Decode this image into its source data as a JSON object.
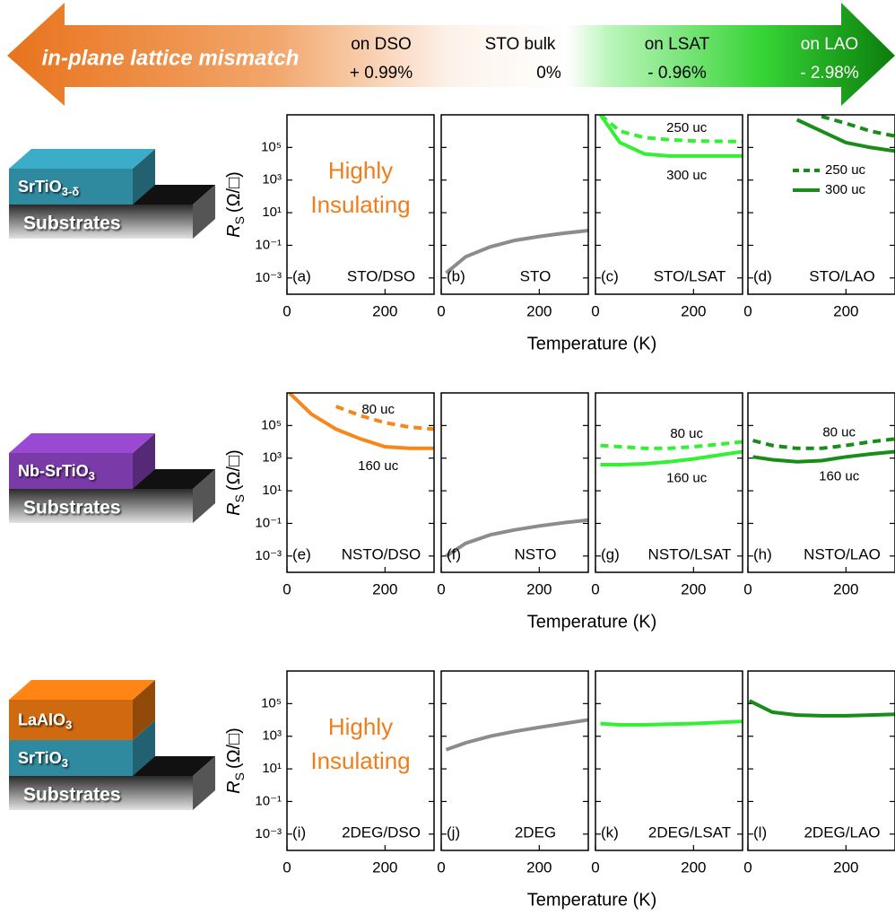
{
  "banner": {
    "title": "in-plane lattice mismatch",
    "substrates": [
      {
        "name": "on DSO",
        "mismatch": "+ 0.99%"
      },
      {
        "name": "STO bulk",
        "mismatch": "0%"
      },
      {
        "name": "on LSAT",
        "mismatch": "- 0.96%"
      },
      {
        "name": "on LAO",
        "mismatch": "- 2.98%"
      }
    ]
  },
  "rows": [
    {
      "film": [
        {
          "text": "SrTiO",
          "sub": "3-δ"
        }
      ],
      "substrate": "Substrates",
      "y_label": {
        "symbol": "R",
        "subscript": "S",
        "unit": "(Ω/□)"
      },
      "x_label": "Temperature (K)"
    },
    {
      "film": [
        {
          "text": "Nb-SrTiO",
          "sub": "3"
        }
      ],
      "substrate": "Substrates",
      "y_label": {
        "symbol": "R",
        "subscript": "S",
        "unit": "(Ω/□)"
      },
      "x_label": "Temperature (K)"
    },
    {
      "film": [
        {
          "text": "LaAlO",
          "sub": "3"
        },
        {
          "text": "SrTiO",
          "sub": "3"
        }
      ],
      "substrate": "Substrates",
      "y_label": {
        "symbol": "R",
        "subscript": "S",
        "unit": "(Ω/□)"
      },
      "x_label": "Temperature (K)"
    }
  ],
  "chart_data": [
    {
      "type": "line",
      "panel_label": "(a)",
      "sample": "STO/DSO",
      "annotation": [
        "Highly",
        "Insulating"
      ],
      "xlim": [
        0,
        300
      ],
      "xticks": [
        0,
        200
      ],
      "ylim": [
        0.0001,
        10000000
      ],
      "log_y": true,
      "yticks": [
        {
          "value": 0.001,
          "label": "10⁻³"
        },
        {
          "value": 0.1,
          "label": "10⁻¹"
        },
        {
          "value": 10,
          "label": "10¹"
        },
        {
          "value": 1000,
          "label": "10³"
        },
        {
          "value": 100000,
          "label": "10⁵"
        }
      ]
    },
    {
      "type": "line",
      "panel_label": "(b)",
      "sample": "STO",
      "xlim": [
        0,
        300
      ],
      "xticks": [
        0,
        200
      ],
      "ylim": [
        0.0001,
        10000000
      ],
      "log_y": true,
      "yticks": [
        0.001,
        0.1,
        10,
        1000,
        100000
      ],
      "x": [
        10,
        50,
        100,
        150,
        200,
        250,
        300
      ],
      "series": [
        {
          "color": "#8c8c8c",
          "values": [
            0.002,
            0.02,
            0.08,
            0.2,
            0.35,
            0.55,
            0.8
          ]
        }
      ]
    },
    {
      "type": "line",
      "panel_label": "(c)",
      "sample": "STO/LSAT",
      "xlim": [
        0,
        300
      ],
      "xticks": [
        0,
        200
      ],
      "ylim": [
        0.0001,
        10000000
      ],
      "log_y": true,
      "yticks": [
        0.001,
        0.1,
        10,
        1000,
        100000
      ],
      "legend": false,
      "x": [
        10,
        50,
        100,
        150,
        200,
        250,
        300
      ],
      "series": [
        {
          "name": "250 uc",
          "color": "#33f033",
          "dashed": true,
          "values": [
            10000000,
            1000000,
            400000,
            300000,
            250000,
            240000,
            230000
          ]
        },
        {
          "name": "300 uc",
          "color": "#33f033",
          "dashed": false,
          "values": [
            10000000,
            200000,
            40000,
            30000,
            30000,
            30000,
            30000
          ]
        }
      ]
    },
    {
      "type": "line",
      "panel_label": "(d)",
      "sample": "STO/LAO",
      "xlim": [
        0,
        300
      ],
      "xticks": [
        0,
        200
      ],
      "ylim": [
        0.0001,
        10000000
      ],
      "log_y": true,
      "yticks": [
        0.001,
        0.1,
        10,
        1000,
        100000
      ],
      "legend": true,
      "x": [
        10,
        50,
        100,
        150,
        200,
        250,
        300
      ],
      "series": [
        {
          "name": "250 uc",
          "color": "#1a8c1a",
          "dashed": true,
          "values": [
            null,
            null,
            null,
            8000000,
            3000000,
            1000000,
            500000
          ]
        },
        {
          "name": "300 uc",
          "color": "#1a8c1a",
          "dashed": false,
          "values": [
            null,
            null,
            5000000,
            1000000,
            200000,
            100000,
            60000
          ]
        }
      ]
    },
    {
      "type": "line",
      "panel_label": "(e)",
      "sample": "NSTO/DSO",
      "xlim": [
        0,
        300
      ],
      "xticks": [
        0,
        200
      ],
      "ylim": [
        0.0001,
        10000000
      ],
      "log_y": true,
      "legend": false,
      "yticks": [
        {
          "value": 0.001,
          "label": "10⁻³"
        },
        {
          "value": 0.1,
          "label": "10⁻¹"
        },
        {
          "value": 10,
          "label": "10¹"
        },
        {
          "value": 1000,
          "label": "10³"
        },
        {
          "value": 100000,
          "label": "10⁵"
        }
      ],
      "x": [
        5,
        50,
        100,
        150,
        200,
        250,
        300
      ],
      "series": [
        {
          "name": "80 uc",
          "color": "#f7861b",
          "dashed": true,
          "values": [
            null,
            null,
            1500000,
            400000,
            150000,
            80000,
            60000
          ]
        },
        {
          "name": "160 uc",
          "color": "#f7861b",
          "dashed": false,
          "values": [
            10000000,
            500000,
            60000,
            15000,
            5000,
            4000,
            4000
          ]
        }
      ]
    },
    {
      "type": "line",
      "panel_label": "(f)",
      "sample": "NSTO",
      "xlim": [
        0,
        300
      ],
      "xticks": [
        0,
        200
      ],
      "ylim": [
        0.0001,
        10000000
      ],
      "log_y": true,
      "yticks": [
        0.001,
        0.1,
        10,
        1000,
        100000
      ],
      "x": [
        10,
        50,
        100,
        150,
        200,
        250,
        300
      ],
      "series": [
        {
          "color": "#8c8c8c",
          "values": [
            0.001,
            0.006,
            0.02,
            0.04,
            0.07,
            0.11,
            0.16
          ]
        }
      ]
    },
    {
      "type": "line",
      "panel_label": "(g)",
      "sample": "NSTO/LSAT",
      "xlim": [
        0,
        300
      ],
      "xticks": [
        0,
        200
      ],
      "ylim": [
        0.0001,
        10000000
      ],
      "log_y": true,
      "yticks": [
        0.001,
        0.1,
        10,
        1000,
        100000
      ],
      "legend": false,
      "x": [
        10,
        50,
        100,
        150,
        200,
        250,
        300
      ],
      "series": [
        {
          "name": "80 uc",
          "color": "#33f033",
          "dashed": true,
          "values": [
            6000,
            5000,
            4000,
            4000,
            5000,
            7000,
            10000
          ]
        },
        {
          "name": "160 uc",
          "color": "#33f033",
          "dashed": false,
          "values": [
            400,
            400,
            450,
            600,
            900,
            1500,
            2500
          ]
        }
      ]
    },
    {
      "type": "line",
      "panel_label": "(h)",
      "sample": "NSTO/LAO",
      "xlim": [
        0,
        300
      ],
      "xticks": [
        0,
        200
      ],
      "ylim": [
        0.0001,
        10000000
      ],
      "log_y": true,
      "yticks": [
        0.001,
        0.1,
        10,
        1000,
        100000
      ],
      "legend": false,
      "x": [
        10,
        50,
        100,
        150,
        200,
        250,
        300
      ],
      "series": [
        {
          "name": "80 uc",
          "color": "#1a8c1a",
          "dashed": true,
          "values": [
            12000,
            6000,
            4000,
            4000,
            6000,
            10000,
            15000
          ]
        },
        {
          "name": "160 uc",
          "color": "#1a8c1a",
          "dashed": false,
          "values": [
            1200,
            800,
            600,
            700,
            1200,
            1800,
            2500
          ]
        }
      ]
    },
    {
      "type": "line",
      "panel_label": "(i)",
      "sample": "2DEG/DSO",
      "annotation": [
        "Highly",
        "Insulating"
      ],
      "xlim": [
        0,
        300
      ],
      "xticks": [
        0,
        200
      ],
      "ylim": [
        0.0001,
        10000000
      ],
      "log_y": true,
      "yticks": [
        {
          "value": 0.001,
          "label": "10⁻³"
        },
        {
          "value": 0.1,
          "label": "10⁻¹"
        },
        {
          "value": 10,
          "label": "10¹"
        },
        {
          "value": 1000,
          "label": "10³"
        },
        {
          "value": 100000,
          "label": "10⁵"
        }
      ]
    },
    {
      "type": "line",
      "panel_label": "(j)",
      "sample": "2DEG",
      "xlim": [
        0,
        300
      ],
      "xticks": [
        0,
        200
      ],
      "ylim": [
        0.0001,
        10000000
      ],
      "log_y": true,
      "yticks": [
        0.001,
        0.1,
        10,
        1000,
        100000
      ],
      "x": [
        10,
        50,
        100,
        150,
        200,
        250,
        300
      ],
      "series": [
        {
          "color": "#8c8c8c",
          "values": [
            150,
            400,
            1000,
            2000,
            3500,
            6000,
            10000
          ]
        }
      ]
    },
    {
      "type": "line",
      "panel_label": "(k)",
      "sample": "2DEG/LSAT",
      "xlim": [
        0,
        300
      ],
      "xticks": [
        0,
        200
      ],
      "ylim": [
        0.0001,
        10000000
      ],
      "log_y": true,
      "yticks": [
        0.001,
        0.1,
        10,
        1000,
        100000
      ],
      "x": [
        10,
        50,
        100,
        150,
        200,
        250,
        300
      ],
      "series": [
        {
          "color": "#33f033",
          "values": [
            6000,
            5000,
            5000,
            5500,
            6000,
            7000,
            8000
          ]
        }
      ]
    },
    {
      "type": "line",
      "panel_label": "(l)",
      "sample": "2DEG/LAO",
      "xlim": [
        0,
        300
      ],
      "xticks": [
        0,
        200
      ],
      "ylim": [
        0.0001,
        10000000
      ],
      "log_y": true,
      "yticks": [
        0.001,
        0.1,
        10,
        1000,
        100000
      ],
      "x": [
        3,
        50,
        100,
        150,
        200,
        250,
        300
      ],
      "series": [
        {
          "color": "#1a8c1a",
          "values": [
            150000,
            30000,
            20000,
            18000,
            18000,
            20000,
            22000
          ]
        }
      ]
    }
  ]
}
